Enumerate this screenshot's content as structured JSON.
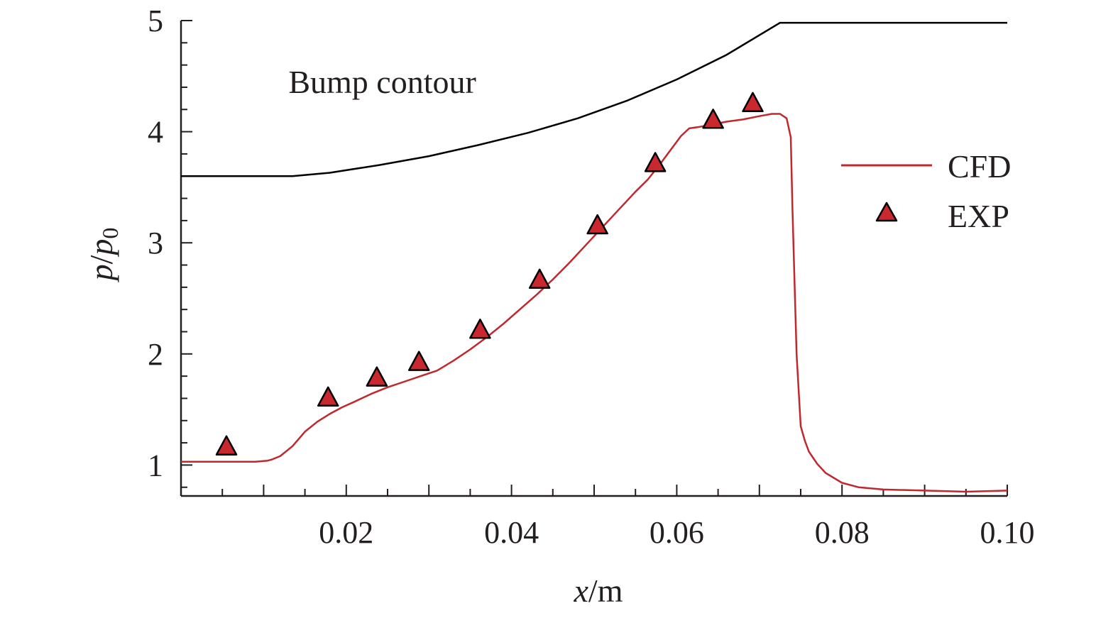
{
  "chart_data": {
    "type": "line",
    "title": "",
    "xlabel": {
      "var": "x",
      "unit": "/m"
    },
    "ylabel": {
      "var": "p",
      "sep": "/",
      "var2": "p",
      "sub": "0"
    },
    "xlim": [
      0.0,
      0.1
    ],
    "ylim": [
      0.76,
      5.0
    ],
    "x_ticks": [
      0.02,
      0.04,
      0.06,
      0.08,
      0.1
    ],
    "x_tick_labels": [
      "0.02",
      "0.04",
      "0.06",
      "0.08",
      "0.10"
    ],
    "y_ticks": [
      1,
      2,
      3,
      4,
      5
    ],
    "y_tick_labels": [
      "1",
      "2",
      "3",
      "4",
      "5"
    ],
    "grid": false,
    "legend_position": "right",
    "annotation": {
      "text": "Bump contour",
      "x": 0.013,
      "y": 4.45
    },
    "series": [
      {
        "name": "CFD",
        "kind": "line",
        "color": "#c0282e",
        "x": [
          0.0,
          0.005,
          0.009,
          0.0105,
          0.011,
          0.012,
          0.0135,
          0.015,
          0.0165,
          0.018,
          0.0195,
          0.021,
          0.023,
          0.025,
          0.027,
          0.029,
          0.031,
          0.033,
          0.035,
          0.037,
          0.039,
          0.041,
          0.043,
          0.045,
          0.047,
          0.049,
          0.051,
          0.053,
          0.055,
          0.0565,
          0.058,
          0.0595,
          0.0605,
          0.0615,
          0.0625,
          0.064,
          0.066,
          0.068,
          0.07,
          0.0715,
          0.0725,
          0.0733,
          0.0738,
          0.074,
          0.0745,
          0.075,
          0.0755,
          0.076,
          0.077,
          0.078,
          0.08,
          0.082,
          0.085,
          0.09,
          0.095,
          0.1
        ],
        "y": [
          1.03,
          1.03,
          1.03,
          1.04,
          1.05,
          1.08,
          1.17,
          1.3,
          1.39,
          1.46,
          1.52,
          1.57,
          1.64,
          1.7,
          1.75,
          1.8,
          1.85,
          1.94,
          2.04,
          2.15,
          2.27,
          2.4,
          2.53,
          2.67,
          2.82,
          2.98,
          3.14,
          3.3,
          3.46,
          3.57,
          3.71,
          3.86,
          3.96,
          4.03,
          4.04,
          4.06,
          4.09,
          4.11,
          4.14,
          4.16,
          4.16,
          4.12,
          3.95,
          3.3,
          2.0,
          1.35,
          1.22,
          1.12,
          1.01,
          0.93,
          0.84,
          0.8,
          0.78,
          0.77,
          0.76,
          0.77
        ]
      },
      {
        "name": "EXP",
        "kind": "marker",
        "marker": "triangle",
        "color": "#c8282e",
        "x": [
          0.0055,
          0.0178,
          0.0237,
          0.0288,
          0.0362,
          0.0434,
          0.0504,
          0.0574,
          0.0644,
          0.0692
        ],
        "y": [
          1.17,
          1.61,
          1.79,
          1.93,
          2.22,
          2.67,
          3.16,
          3.72,
          4.11,
          4.26
        ]
      },
      {
        "name": "Bump contour",
        "kind": "line",
        "color": "#000000",
        "x": [
          0.0,
          0.0135,
          0.018,
          0.024,
          0.03,
          0.036,
          0.042,
          0.048,
          0.054,
          0.06,
          0.066,
          0.0725,
          0.1
        ],
        "y": [
          3.6,
          3.6,
          3.63,
          3.7,
          3.78,
          3.88,
          3.99,
          4.12,
          4.28,
          4.47,
          4.69,
          4.98,
          4.98
        ]
      }
    ]
  }
}
